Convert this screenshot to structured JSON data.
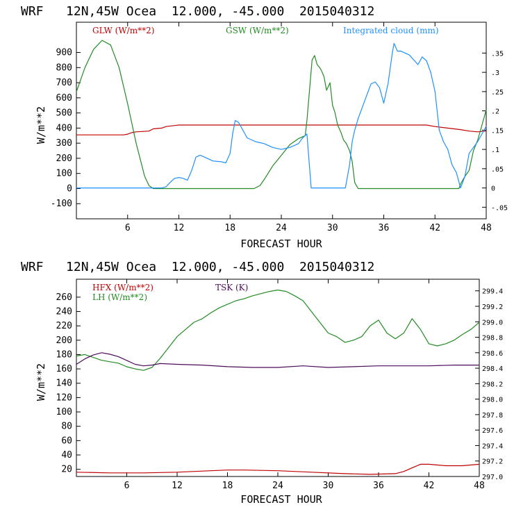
{
  "chart_data": [
    {
      "type": "line",
      "title": "WRF   12N,45W Ocea  12.000, -45.000  2015040312",
      "xlabel": "FORECAST HOUR",
      "ylabel": "W/m**2",
      "xlim": [
        0,
        48
      ],
      "ylim": [
        -200,
        1100
      ],
      "y2lim": [
        -0.08,
        0.43
      ],
      "x_ticks": [
        6,
        12,
        18,
        24,
        30,
        36,
        42,
        48
      ],
      "y_ticks": [
        -100,
        0,
        100,
        200,
        300,
        400,
        500,
        600,
        700,
        800,
        900
      ],
      "y2_ticks": [
        "-.05",
        "0",
        ".05",
        ".1",
        ".15",
        ".2",
        ".25",
        ".3",
        ".35"
      ],
      "y2_tick_values": [
        -0.05,
        0,
        0.05,
        0.1,
        0.15,
        0.2,
        0.25,
        0.3,
        0.35
      ],
      "series": [
        {
          "name": "GLW (W/m**2)",
          "color": "#c00000",
          "axis": "left",
          "x": [
            0,
            5.5,
            6,
            6.5,
            7,
            8.5,
            9,
            10,
            10.5,
            12,
            41,
            42,
            45,
            46,
            47,
            48
          ],
          "y": [
            355,
            355,
            360,
            370,
            375,
            380,
            395,
            400,
            410,
            420,
            420,
            410,
            390,
            380,
            375,
            380
          ]
        },
        {
          "name": "GSW (W/m**2)",
          "color": "#228b22",
          "axis": "left",
          "x": [
            0,
            1,
            2,
            3,
            4,
            5,
            6,
            7,
            8,
            8.5,
            9,
            20.8,
            21.5,
            22,
            23,
            24,
            25,
            26,
            26.8,
            27,
            27.3,
            27.6,
            27.9,
            28.2,
            28.5,
            28.7,
            29,
            29.3,
            29.7,
            30,
            30.3,
            30.6,
            31,
            31.3,
            31.6,
            32,
            32.3,
            32.6,
            33,
            44.8,
            45,
            45.5,
            46,
            46.5,
            47,
            47.5,
            48
          ],
          "y": [
            640,
            800,
            920,
            980,
            950,
            800,
            560,
            300,
            80,
            20,
            0,
            0,
            20,
            60,
            150,
            220,
            290,
            330,
            350,
            450,
            650,
            850,
            880,
            820,
            800,
            780,
            740,
            650,
            700,
            550,
            500,
            420,
            370,
            320,
            300,
            250,
            180,
            40,
            0,
            0,
            30,
            80,
            120,
            250,
            320,
            420,
            520
          ]
        },
        {
          "name": "Integrated cloud (mm)",
          "color": "#1e90ff",
          "axis": "right",
          "x": [
            0,
            8.9,
            9.5,
            10,
            10.5,
            11,
            11.5,
            12,
            12.5,
            13,
            13.5,
            14,
            14.5,
            15,
            16,
            17,
            17.5,
            18,
            18.3,
            18.6,
            19,
            19.5,
            20,
            21,
            22,
            23,
            24,
            25,
            26,
            26.5,
            27,
            27.5,
            31.5,
            32,
            32.3,
            32.6,
            33,
            33.5,
            34,
            34.5,
            35,
            35.5,
            36,
            36.5,
            37,
            37.2,
            37.6,
            38,
            39,
            40,
            40.5,
            41,
            41.5,
            42,
            42.5,
            43,
            43.5,
            44,
            44.5,
            45,
            45.5,
            46,
            47,
            48
          ],
          "y": [
            0.0,
            0.0,
            0.0,
            0.0,
            0.003,
            0.015,
            0.025,
            0.027,
            0.025,
            0.02,
            0.045,
            0.08,
            0.085,
            0.08,
            0.07,
            0.068,
            0.065,
            0.09,
            0.14,
            0.175,
            0.17,
            0.15,
            0.13,
            0.12,
            0.115,
            0.105,
            0.1,
            0.105,
            0.115,
            0.13,
            0.14,
            0.0,
            0.0,
            0.06,
            0.12,
            0.15,
            0.18,
            0.21,
            0.24,
            0.27,
            0.275,
            0.26,
            0.22,
            0.27,
            0.35,
            0.375,
            0.355,
            0.355,
            0.345,
            0.32,
            0.34,
            0.33,
            0.3,
            0.25,
            0.15,
            0.12,
            0.1,
            0.06,
            0.04,
            0.0,
            0.03,
            0.09,
            0.12,
            0.16
          ]
        }
      ]
    },
    {
      "type": "line",
      "title": "WRF   12N,45W Ocea  12.000, -45.000  2015040312",
      "xlabel": "FORECAST HOUR",
      "ylabel": "W/m**2",
      "xlim": [
        0,
        48
      ],
      "ylim": [
        10,
        285
      ],
      "y2lim": [
        297.0,
        299.55
      ],
      "x_ticks": [
        6,
        12,
        18,
        24,
        30,
        36,
        42,
        48
      ],
      "y_ticks": [
        20,
        40,
        60,
        80,
        100,
        120,
        140,
        160,
        180,
        200,
        220,
        240,
        260
      ],
      "y2_ticks": [
        "297.0",
        "297.2",
        "297.4",
        "297.6",
        "297.8",
        "298.0",
        "298.2",
        "298.4",
        "298.6",
        "298.8",
        "299.0",
        "299.2",
        "299.4"
      ],
      "y2_tick_values": [
        297.0,
        297.2,
        297.4,
        297.6,
        297.8,
        298.0,
        298.2,
        298.4,
        298.6,
        298.8,
        299.0,
        299.2,
        299.4
      ],
      "series": [
        {
          "name": "HFX (W/m**2)",
          "color": "#c00000",
          "axis": "left",
          "x": [
            0,
            4,
            8,
            12,
            16,
            18,
            20,
            24,
            28,
            32,
            35,
            38,
            39,
            40,
            41,
            42,
            44,
            46,
            48
          ],
          "y": [
            16,
            15,
            15,
            16,
            18,
            19,
            19,
            18,
            16,
            14,
            13,
            14,
            17,
            22,
            27,
            27,
            25,
            25,
            27
          ]
        },
        {
          "name": "LH (W/m**2)",
          "color": "#228b22",
          "axis": "left",
          "x": [
            0,
            1,
            2,
            3,
            4,
            5,
            6,
            7,
            8,
            9,
            10,
            11,
            12,
            13,
            14,
            15,
            16,
            17,
            18,
            19,
            20,
            21,
            22,
            23,
            24,
            25,
            26,
            27,
            28,
            29,
            30,
            31,
            32,
            33,
            34,
            35,
            36,
            37,
            38,
            39,
            40,
            41,
            42,
            43,
            44,
            45,
            46,
            47,
            48
          ],
          "y": [
            178,
            180,
            176,
            172,
            170,
            168,
            163,
            160,
            158,
            162,
            175,
            190,
            205,
            215,
            225,
            230,
            238,
            245,
            250,
            255,
            258,
            262,
            265,
            268,
            270,
            268,
            262,
            255,
            240,
            225,
            210,
            205,
            197,
            200,
            205,
            220,
            228,
            210,
            202,
            210,
            230,
            215,
            195,
            192,
            195,
            200,
            208,
            215,
            225
          ]
        },
        {
          "name": "TSK (K)",
          "color": "#4b0c5a",
          "axis": "right",
          "x": [
            0,
            1,
            2,
            3,
            4,
            5,
            6,
            7,
            8,
            9,
            10,
            12,
            15,
            18,
            21,
            24,
            27,
            30,
            33,
            36,
            39,
            42,
            45,
            48
          ],
          "y": [
            298.45,
            298.52,
            298.57,
            298.6,
            298.58,
            298.55,
            298.5,
            298.45,
            298.43,
            298.44,
            298.46,
            298.45,
            298.44,
            298.42,
            298.41,
            298.41,
            298.43,
            298.41,
            298.42,
            298.43,
            298.43,
            298.43,
            298.44,
            298.44
          ]
        }
      ]
    }
  ]
}
